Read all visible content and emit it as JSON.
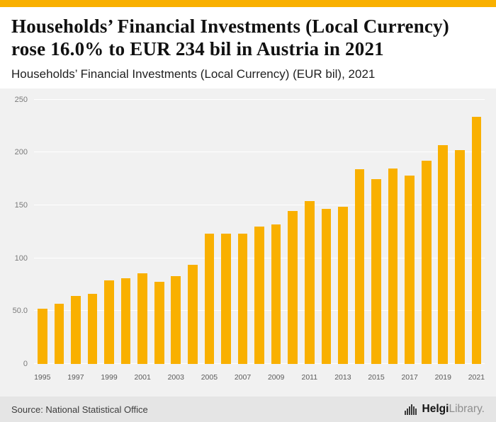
{
  "colors": {
    "accent": "#F9B000",
    "bar": "#F9B000"
  },
  "header": {
    "title": "Households’ Financial Investments (Local Currency) rose 16.0% to EUR 234 bil in Austria in 2021",
    "subtitle": "Households’ Financial Investments (Local Currency) (EUR bil), 2021"
  },
  "chart_data": {
    "type": "bar",
    "title": "Households’ Financial Investments (Local Currency) (EUR bil), 2021",
    "categories": [
      1995,
      1996,
      1997,
      1998,
      1999,
      2000,
      2001,
      2002,
      2003,
      2004,
      2005,
      2006,
      2007,
      2008,
      2009,
      2010,
      2011,
      2012,
      2013,
      2014,
      2015,
      2016,
      2017,
      2018,
      2019,
      2020,
      2021
    ],
    "values": [
      52,
      57,
      64,
      66,
      79,
      81,
      86,
      78,
      83,
      94,
      123,
      123,
      123,
      130,
      132,
      145,
      154,
      147,
      149,
      184,
      175,
      185,
      178,
      192,
      207,
      202,
      234
    ],
    "bar_color": "#F9B000",
    "ylim": [
      0,
      250
    ],
    "yticks": [
      {
        "v": 0,
        "l": "0"
      },
      {
        "v": 50,
        "l": "50.0"
      },
      {
        "v": 100,
        "l": "100"
      },
      {
        "v": 150,
        "l": "150"
      },
      {
        "v": 200,
        "l": "200"
      },
      {
        "v": 250,
        "l": "250"
      }
    ],
    "xtick_labels": [
      "1995",
      "1997",
      "1999",
      "2001",
      "2003",
      "2005",
      "2007",
      "2009",
      "2011",
      "2013",
      "2015",
      "2017",
      "2019",
      "2021"
    ],
    "grid": true,
    "legend": false
  },
  "footer": {
    "source": "Source: National Statistical Office",
    "logo_bold": "Helgi",
    "logo_light": "Library."
  }
}
